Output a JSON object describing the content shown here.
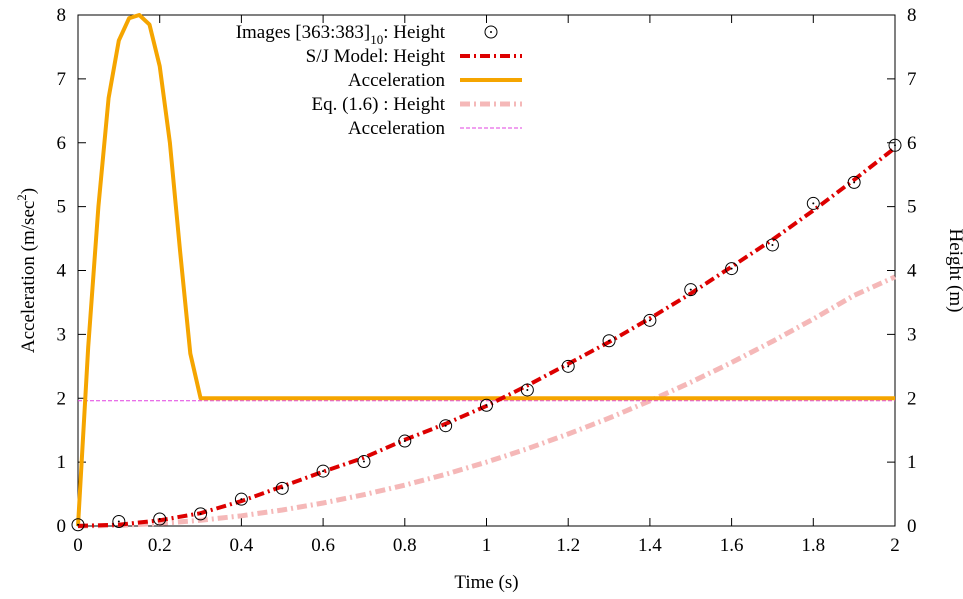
{
  "chart_data": {
    "type": "line",
    "xlabel": "Time (s)",
    "ylabel_left": {
      "main": "Acceleration (m/sec",
      "sup": "2",
      "tail": ")"
    },
    "ylabel_right": "Height (m)",
    "xlim": [
      0,
      2
    ],
    "ylim_left": [
      0,
      8
    ],
    "ylim_right": [
      0,
      8
    ],
    "xticks": [
      "0",
      "0.2",
      "0.4",
      "0.6",
      "0.8",
      "1",
      "1.2",
      "1.4",
      "1.6",
      "1.8",
      "2"
    ],
    "yticks_left": [
      "0",
      "1",
      "2",
      "3",
      "4",
      "5",
      "6",
      "7",
      "8"
    ],
    "yticks_right": [
      "0",
      "1",
      "2",
      "3",
      "4",
      "5",
      "6",
      "7",
      "8"
    ],
    "grid": false,
    "legend_position": "top-right",
    "series": [
      {
        "name": "Images [363:383]",
        "name_sub": "10",
        "name_tail": ": Height",
        "style": "circles",
        "color": "#000000",
        "x": [
          0,
          0.1,
          0.2,
          0.3,
          0.4,
          0.5,
          0.6,
          0.7,
          0.8,
          0.9,
          1.0,
          1.1,
          1.2,
          1.3,
          1.4,
          1.5,
          1.6,
          1.7,
          1.8,
          1.9,
          2.0
        ],
        "y": [
          0.02,
          0.07,
          0.11,
          0.19,
          0.42,
          0.59,
          0.86,
          1.01,
          1.33,
          1.57,
          1.89,
          2.13,
          2.5,
          2.9,
          3.22,
          3.7,
          4.03,
          4.4,
          5.05,
          5.38,
          5.96
        ]
      },
      {
        "name": "S/J Model: Height",
        "style": "dash-dot",
        "color": "#dd0000",
        "x": [
          0,
          0.1,
          0.2,
          0.3,
          0.4,
          0.5,
          0.6,
          0.7,
          0.8,
          0.9,
          1.0,
          1.1,
          1.2,
          1.3,
          1.4,
          1.5,
          1.6,
          1.7,
          1.8,
          1.9,
          2.0
        ],
        "y": [
          0,
          0.02,
          0.09,
          0.2,
          0.39,
          0.62,
          0.85,
          1.07,
          1.35,
          1.6,
          1.88,
          2.2,
          2.54,
          2.88,
          3.25,
          3.64,
          4.06,
          4.48,
          4.94,
          5.42,
          5.92
        ]
      },
      {
        "name": "Acceleration",
        "style": "solid-thick",
        "color": "#f5a500",
        "x": [
          0,
          0.025,
          0.05,
          0.075,
          0.1,
          0.125,
          0.15,
          0.175,
          0.2,
          0.225,
          0.25,
          0.275,
          0.3,
          0.4,
          0.6,
          0.8,
          1.0,
          1.2,
          1.4,
          1.6,
          1.8,
          2.0
        ],
        "y": [
          0,
          2.8,
          5.0,
          6.7,
          7.6,
          7.95,
          8.0,
          7.85,
          7.2,
          6.0,
          4.3,
          2.7,
          2.0,
          2.0,
          2.0,
          2.0,
          2.0,
          2.0,
          2.0,
          2.0,
          2.0,
          2.0
        ]
      },
      {
        "name": "Eq. (1.6) : Height",
        "style": "dash-dot-light",
        "color": "#f5b8b8",
        "x": [
          0,
          0.1,
          0.2,
          0.3,
          0.4,
          0.5,
          0.6,
          0.7,
          0.8,
          0.9,
          1.0,
          1.1,
          1.2,
          1.3,
          1.4,
          1.5,
          1.6,
          1.7,
          1.8,
          1.9,
          2.0
        ],
        "y": [
          0,
          0.01,
          0.04,
          0.09,
          0.16,
          0.25,
          0.36,
          0.49,
          0.64,
          0.81,
          1.0,
          1.21,
          1.44,
          1.69,
          1.96,
          2.25,
          2.56,
          2.89,
          3.24,
          3.61,
          3.9
        ]
      },
      {
        "name": "Acceleration",
        "style": "dashed-thin",
        "color": "#e040e0",
        "x": [
          0,
          2
        ],
        "y": [
          1.96,
          1.96
        ]
      }
    ]
  }
}
